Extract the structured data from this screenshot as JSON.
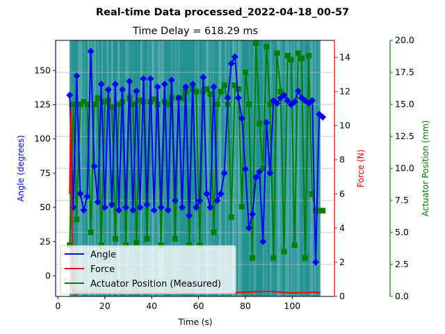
{
  "chart_data": {
    "type": "line",
    "suptitle": "Real-time Data processed_2022-04-18_00-57",
    "title": "Time Delay = 618.29 ms",
    "xlabel": "Time (s)",
    "xlim": [
      -1,
      118
    ],
    "xticks": [
      0,
      20,
      40,
      60,
      80,
      100
    ],
    "grid": "horizontal",
    "legend_placement": "lower-left",
    "axes": {
      "angle": {
        "label": "Angle (degrees)",
        "color": "#0000ff",
        "ylim": [
          -15,
          172
        ],
        "ticks": [
          0,
          25,
          50,
          75,
          100,
          125,
          150
        ]
      },
      "force": {
        "label": "Force (N)",
        "color": "#ff0000",
        "ylim": [
          0,
          15
        ],
        "ticks": [
          0,
          2,
          4,
          6,
          8,
          10,
          12,
          14
        ]
      },
      "actuator": {
        "label": "Actuator Position (mm)",
        "color": "#008000",
        "ylim": [
          0,
          20
        ],
        "ticks": [
          0.0,
          2.5,
          5.0,
          7.5,
          10.0,
          12.5,
          15.0,
          17.5,
          20.0
        ]
      }
    },
    "background_band": {
      "x_start": 5,
      "x_end": 112,
      "color": "#008080"
    },
    "series": [
      {
        "name": "Angle",
        "axis": "angle",
        "color": "#0000ff",
        "marker": "diamond",
        "x": [
          5,
          6.5,
          8,
          9.5,
          11,
          12.5,
          14,
          15.5,
          17,
          18.5,
          20,
          21.5,
          23,
          24.5,
          26,
          27.5,
          29,
          30.5,
          32,
          33.5,
          35,
          36.5,
          38,
          39.5,
          41,
          42.5,
          44,
          45.5,
          47,
          48.5,
          50,
          51.5,
          53,
          54.5,
          56,
          57.5,
          59,
          60.5,
          62,
          63.5,
          65,
          66.5,
          68,
          69.5,
          71,
          72.5,
          74,
          75.5,
          77,
          78.5,
          80,
          81.5,
          83,
          84.5,
          86,
          87.5,
          89,
          90.5,
          92,
          93.5,
          95,
          96.5,
          98,
          99.5,
          101,
          102.5,
          104,
          105.5,
          107,
          108.5,
          110,
          111.5,
          113
        ],
        "y": [
          132,
          50,
          146,
          60,
          48,
          58,
          164,
          80,
          54,
          140,
          50,
          136,
          52,
          140,
          48,
          136,
          50,
          142,
          48,
          135,
          50,
          144,
          52,
          144,
          48,
          138,
          50,
          140,
          48,
          143,
          55,
          130,
          50,
          138,
          44,
          140,
          50,
          55,
          145,
          60,
          50,
          138,
          55,
          60,
          75,
          130,
          155,
          160,
          130,
          115,
          78,
          35,
          45,
          72,
          76,
          25,
          112,
          75,
          128,
          126,
          130,
          132,
          128,
          125,
          127,
          135,
          130,
          128,
          126,
          128,
          10,
          118,
          116
        ]
      },
      {
        "name": "Force",
        "axis": "force",
        "color": "#ff0000",
        "x": [
          5,
          5.5,
          6,
          6.5,
          7,
          7.5,
          8,
          9,
          10,
          12,
          15,
          20,
          30,
          40,
          50,
          60,
          70,
          80,
          90,
          100,
          110,
          112
        ],
        "y": [
          6,
          11,
          4,
          0.2,
          0.3,
          0.1,
          0.3,
          0.2,
          0.3,
          0.2,
          0.25,
          0.2,
          0.3,
          0.2,
          0.25,
          0.2,
          0.2,
          0.25,
          0.3,
          0.2,
          0.25,
          0.2
        ]
      },
      {
        "name": "Actuator Position (Measured)",
        "axis": "actuator",
        "color": "#008000",
        "marker": "square",
        "x": [
          5,
          6.5,
          8,
          9.5,
          11,
          12.5,
          14,
          15.5,
          17,
          18.5,
          20,
          21.5,
          23,
          24.5,
          26,
          27.5,
          29,
          30.5,
          32,
          33.5,
          35,
          36.5,
          38,
          39.5,
          41,
          42.5,
          44,
          45.5,
          47,
          48.5,
          50,
          51.5,
          53,
          54.5,
          56,
          57.5,
          59,
          60.5,
          62,
          63.5,
          65,
          66.5,
          68,
          69.5,
          71,
          72.5,
          74,
          75.5,
          77,
          78.5,
          80,
          81.5,
          83,
          84.5,
          86,
          87.5,
          89,
          90.5,
          92,
          93.5,
          95,
          96.5,
          98,
          99.5,
          101,
          102.5,
          104,
          105.5,
          107,
          108.5,
          110,
          111.5,
          113
        ],
        "y": [
          4,
          15,
          6,
          15,
          15.2,
          15,
          5,
          15,
          15.5,
          4,
          15.2,
          15.3,
          14.8,
          4.5,
          15,
          15.2,
          4,
          15.5,
          15,
          4.2,
          15.3,
          15.2,
          4.5,
          15.2,
          15.4,
          15,
          4,
          15.2,
          15,
          15.5,
          4.5,
          15.5,
          15.5,
          16,
          4,
          16.2,
          16,
          4,
          16,
          16.2,
          15.8,
          5,
          15,
          16,
          16.5,
          15,
          6.2,
          16.5,
          16.2,
          7,
          17.5,
          15,
          3,
          19.8,
          13.5,
          10,
          19.5,
          15,
          3,
          19,
          16,
          3.5,
          18.8,
          18.5,
          4,
          19,
          18.6,
          3,
          18.8,
          8,
          6.7,
          6.7,
          6.7
        ]
      }
    ]
  }
}
